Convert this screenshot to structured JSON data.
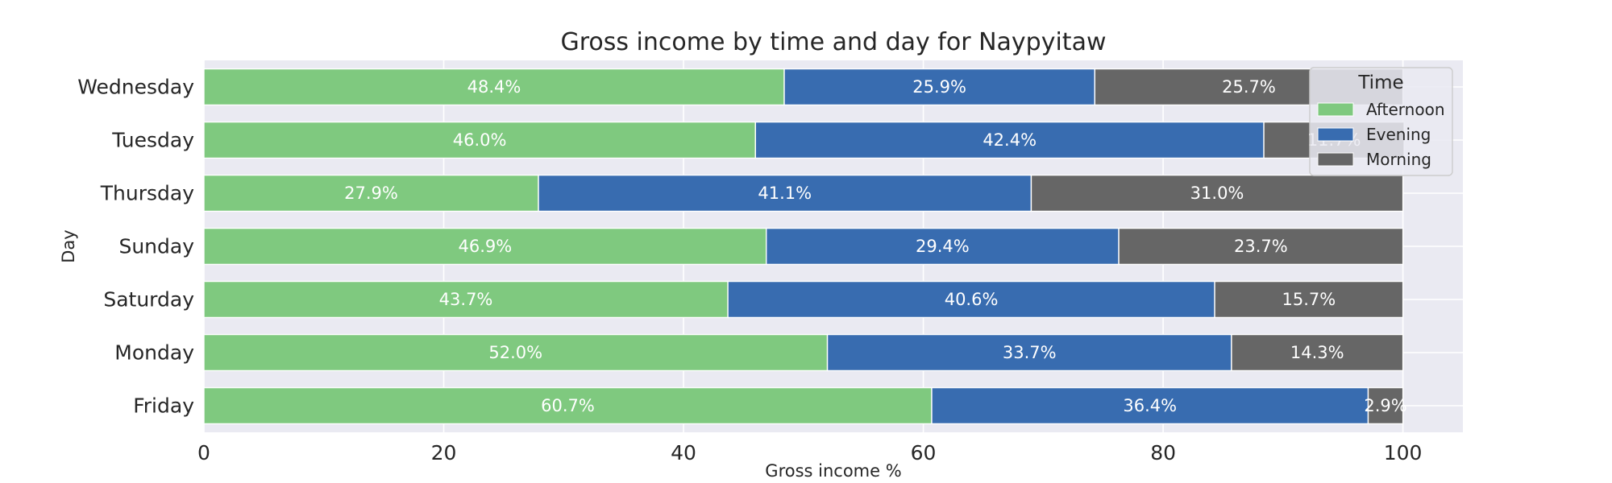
{
  "chart_data": {
    "type": "bar",
    "orientation": "horizontal",
    "stacked": true,
    "title": "Gross income by time and day for Naypyitaw",
    "xlabel": "Gross income %",
    "ylabel": "Day",
    "xlim": [
      0,
      105
    ],
    "xticks": [
      0,
      20,
      40,
      60,
      80,
      100
    ],
    "grid": true,
    "categories": [
      "Wednesday",
      "Tuesday",
      "Thursday",
      "Sunday",
      "Saturday",
      "Monday",
      "Friday"
    ],
    "series": [
      {
        "name": "Afternoon",
        "color": "#7fc97f",
        "values": [
          48.4,
          46.0,
          27.9,
          46.9,
          43.7,
          52.0,
          60.7
        ]
      },
      {
        "name": "Evening",
        "color": "#386cb0",
        "values": [
          25.9,
          42.4,
          41.1,
          29.4,
          40.6,
          33.7,
          36.4
        ]
      },
      {
        "name": "Morning",
        "color": "#666666",
        "values": [
          25.7,
          11.7,
          31.0,
          23.7,
          15.7,
          14.3,
          2.9
        ]
      }
    ],
    "data_labels": [
      [
        "48.4%",
        "46.0%",
        "27.9%",
        "46.9%",
        "43.7%",
        "52.0%",
        "60.7%"
      ],
      [
        "25.9%",
        "42.4%",
        "41.1%",
        "29.4%",
        "40.6%",
        "33.7%",
        "36.4%"
      ],
      [
        "25.7%",
        "11.7%",
        "31.0%",
        "23.7%",
        "15.7%",
        "14.3%",
        "2.9%"
      ]
    ],
    "legend": {
      "title": "Time",
      "placement": "top-right"
    }
  }
}
